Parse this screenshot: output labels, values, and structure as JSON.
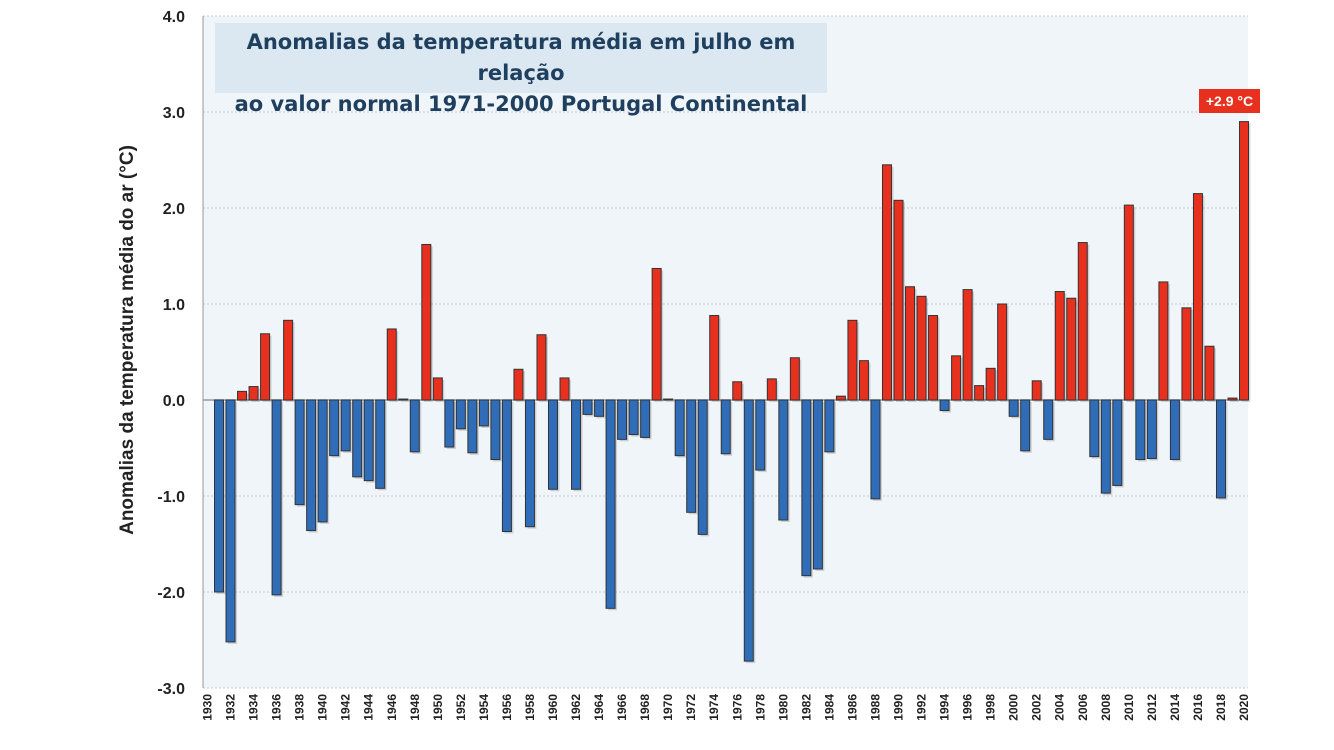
{
  "chart_data": {
    "type": "bar",
    "title": "Anomalias da temperatura média em julho em relação ao valor normal 1971-2000 Portugal Continental",
    "title_lines": [
      "Anomalias da temperatura média em julho em relação",
      "ao valor normal 1971-2000  Portugal Continental"
    ],
    "ylabel": "Anomalias da temperatura média do ar (°C)",
    "xlabel": "",
    "ylim": [
      -3.0,
      4.0
    ],
    "yticks": [
      "-3.0",
      "-2.0",
      "-1.0",
      "0.0",
      "1.0",
      "2.0",
      "3.0",
      "4.0"
    ],
    "xticks": [
      "1930",
      "1932",
      "1934",
      "1936",
      "1938",
      "1940",
      "1942",
      "1944",
      "1946",
      "1948",
      "1950",
      "1952",
      "1954",
      "1956",
      "1958",
      "1960",
      "1962",
      "1964",
      "1966",
      "1968",
      "1970",
      "1972",
      "1974",
      "1976",
      "1978",
      "1980",
      "1982",
      "1984",
      "1986",
      "1988",
      "1990",
      "1992",
      "1994",
      "1996",
      "1998",
      "2000",
      "2002",
      "2004",
      "2006",
      "2008",
      "2010",
      "2012",
      "2014",
      "2016",
      "2018",
      "2020"
    ],
    "grid": true,
    "positive_color": "#e8301e",
    "negative_color": "#2f6db8",
    "background_color": "#eff5f9",
    "annotation": "+2.9 °C",
    "years_start": 1931,
    "values": [
      -2.0,
      -2.52,
      0.09,
      0.14,
      0.69,
      -2.03,
      0.83,
      -1.09,
      -1.36,
      -1.27,
      -0.58,
      -0.53,
      -0.8,
      -0.84,
      -0.92,
      0.74,
      0.01,
      -0.54,
      1.62,
      0.23,
      -0.49,
      -0.3,
      -0.55,
      -0.27,
      -0.62,
      -1.37,
      0.32,
      -1.32,
      0.68,
      -0.93,
      0.23,
      -0.93,
      -0.15,
      -0.17,
      -2.17,
      -0.41,
      -0.36,
      -0.39,
      1.37,
      0.01,
      -0.58,
      -1.17,
      -1.4,
      0.88,
      -0.56,
      0.19,
      -2.72,
      -0.73,
      0.22,
      -1.25,
      0.44,
      -1.83,
      -1.76,
      -0.54,
      0.04,
      0.83,
      0.41,
      -1.03,
      2.45,
      2.08,
      1.18,
      1.08,
      0.88,
      -0.11,
      0.46,
      1.15,
      0.15,
      0.33,
      1.0,
      -0.17,
      -0.53,
      0.2,
      -0.41,
      1.13,
      1.06,
      1.64,
      -0.59,
      -0.97,
      -0.89,
      2.03,
      -0.62,
      -0.61,
      1.23,
      -0.62,
      0.96,
      2.15,
      0.56,
      -1.02,
      0.02,
      2.9
    ]
  }
}
